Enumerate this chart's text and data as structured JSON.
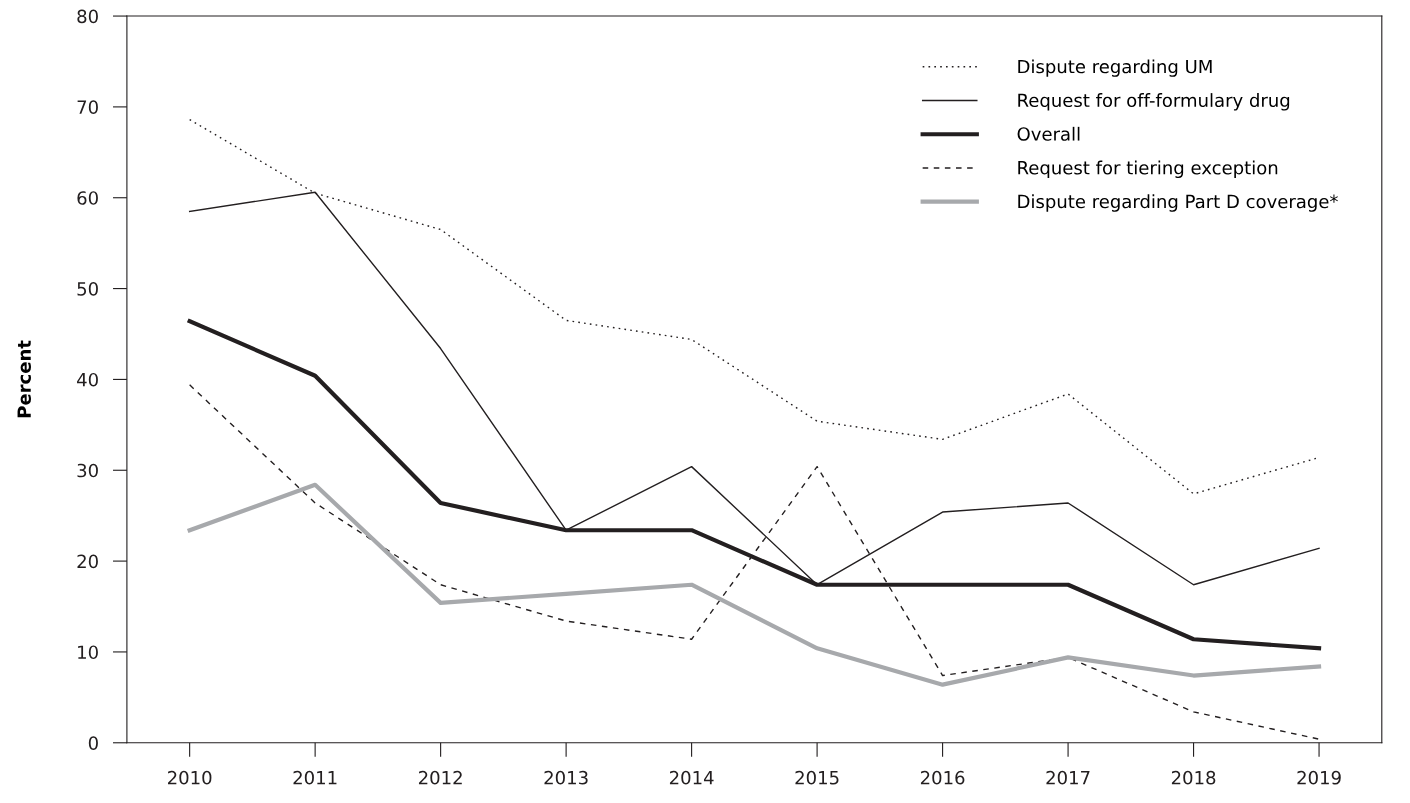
{
  "chart_data": {
    "type": "line",
    "ylabel": "Percent",
    "categories": [
      "2010",
      "2011",
      "2012",
      "2013",
      "2014",
      "2015",
      "2016",
      "2017",
      "2018",
      "2019"
    ],
    "ylim": [
      0,
      80
    ],
    "yticks": [
      0,
      10,
      20,
      30,
      40,
      50,
      60,
      70,
      80
    ],
    "grid": false,
    "legend": "top right",
    "marker": "none",
    "series": [
      {
        "name": "Dispute regarding UM",
        "color": "#231f20",
        "line_style": "dotted",
        "values": [
          68.6,
          60.5,
          56.5,
          46.5,
          44.4,
          35.4,
          33.4,
          38.4,
          27.4,
          31.4
        ]
      },
      {
        "name": "Request for off-formulary drug",
        "color": "#231f20",
        "line_style": "solid",
        "values": [
          58.5,
          60.6,
          43.4,
          23.4,
          30.4,
          17.4,
          25.4,
          26.4,
          17.4,
          21.4
        ]
      },
      {
        "name": "Overall",
        "color": "#231f20",
        "line_style": "solid",
        "values": [
          46.4,
          40.4,
          26.4,
          23.4,
          23.4,
          17.4,
          17.4,
          17.4,
          11.4,
          10.4
        ]
      },
      {
        "name": "Request for tiering exception",
        "color": "#231f20",
        "line_style": "dashed",
        "values": [
          39.4,
          26.4,
          17.4,
          13.4,
          11.4,
          30.4,
          7.4,
          9.4,
          3.4,
          0.4
        ]
      },
      {
        "name": "Dispute regarding Part D coverage*",
        "color": "#a7a9ac",
        "line_style": "solid",
        "values": [
          23.4,
          28.4,
          15.4,
          16.4,
          17.4,
          10.4,
          6.4,
          9.4,
          7.4,
          8.4
        ]
      }
    ]
  }
}
